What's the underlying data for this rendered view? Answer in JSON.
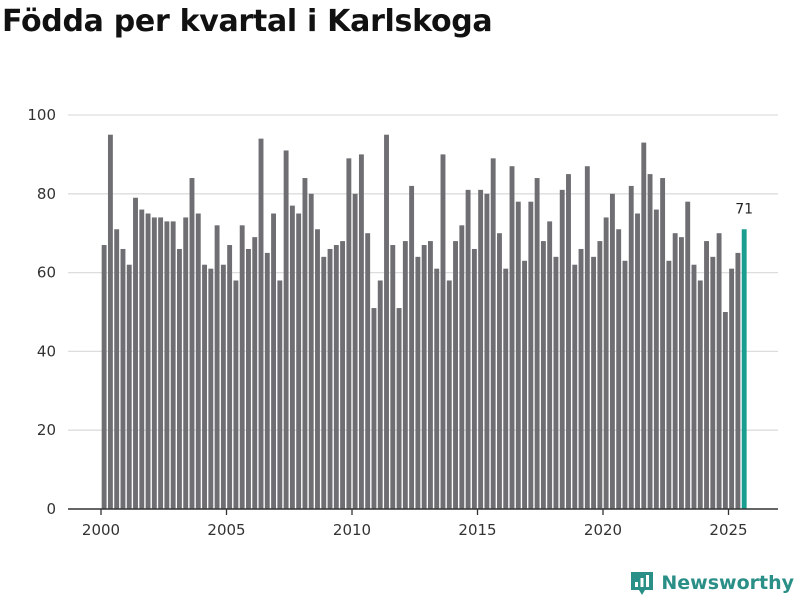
{
  "title": "Födda per kvartal i Karlskoga",
  "brand": {
    "name": "Newsworthy",
    "icon": "newsworthy-logo-icon",
    "color": "#2a8f86"
  },
  "colors": {
    "bar": "#6f6e73",
    "highlight": "#1a9e8f",
    "grid": "#dddddd",
    "axis": "#333333"
  },
  "chart_data": {
    "type": "bar",
    "title": "Födda per kvartal i Karlskoga",
    "xlabel": "",
    "ylabel": "",
    "ylim": [
      0,
      100
    ],
    "yticks": [
      0,
      20,
      40,
      60,
      80,
      100
    ],
    "xticks": [
      "2000",
      "2005",
      "2010",
      "2015",
      "2020",
      "2025"
    ],
    "grid": true,
    "start_year": 2000,
    "values": [
      67,
      95,
      71,
      66,
      62,
      79,
      76,
      75,
      74,
      74,
      73,
      73,
      66,
      74,
      84,
      75,
      62,
      61,
      72,
      62,
      67,
      58,
      72,
      66,
      69,
      94,
      65,
      75,
      58,
      91,
      77,
      75,
      84,
      80,
      71,
      64,
      66,
      67,
      68,
      89,
      80,
      90,
      70,
      51,
      58,
      95,
      67,
      51,
      68,
      82,
      64,
      67,
      68,
      61,
      90,
      58,
      68,
      72,
      81,
      66,
      81,
      80,
      89,
      70,
      61,
      87,
      78,
      63,
      78,
      84,
      68,
      73,
      64,
      81,
      85,
      62,
      66,
      87,
      64,
      68,
      74,
      80,
      71,
      63,
      82,
      75,
      93,
      85,
      76,
      84,
      63,
      70,
      69,
      78,
      62,
      58,
      68,
      64,
      70,
      50,
      61,
      65,
      71
    ],
    "highlight_last": true,
    "last_label": "71"
  }
}
